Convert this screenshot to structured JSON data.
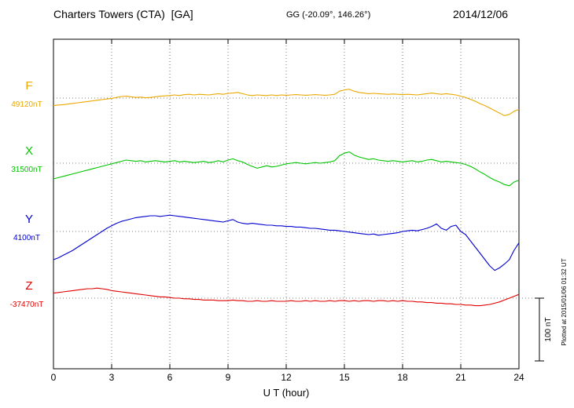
{
  "chart_data": {
    "type": "line",
    "title": "Charters Towers (CTA)  [GA]",
    "subtitle": "GG (-20.09°, 146.26°)",
    "date": "2014/12/06",
    "xlabel": "U T (hour)",
    "xlim": [
      0,
      24
    ],
    "x_ticks": [
      0,
      3,
      6,
      9,
      12,
      15,
      18,
      21,
      24
    ],
    "x_step_hours": 0.25,
    "grid": "dotted vertical lines at 3-hour ticks, dotted horizontal baseline per component",
    "legend_position": "left-margin component labels",
    "scale": {
      "label": "100 nT",
      "nT": 100
    },
    "plotted_at": "Plotted at 2015/01/06 01:32 UT",
    "series": [
      {
        "name": "F",
        "color": "#eaa800",
        "baseline_label": "49120nT",
        "baseline_nT": 49120,
        "offsets_nT": [
          -12,
          -11,
          -10.5,
          -9.5,
          -8.5,
          -7.5,
          -6.5,
          -5.5,
          -4.5,
          -3.5,
          -2.5,
          -1.5,
          -0.5,
          1,
          2.5,
          3,
          2,
          1,
          1.5,
          0.5,
          1,
          2,
          3,
          3.5,
          4,
          5,
          4,
          5.5,
          6,
          5,
          6,
          5.5,
          5,
          6,
          7,
          6,
          7.5,
          8,
          9,
          7,
          5,
          4,
          5,
          4.5,
          4,
          5,
          4,
          5,
          4.5,
          5,
          5.5,
          5,
          4.5,
          5,
          5.5,
          5,
          4.5,
          5,
          6,
          11,
          13,
          14,
          11,
          9,
          8,
          7,
          7.5,
          7,
          6.5,
          6,
          6.5,
          6,
          5.5,
          6,
          5.5,
          5,
          6,
          7,
          8,
          7,
          6,
          7,
          6,
          5,
          3,
          1,
          -2,
          -5,
          -9,
          -12,
          -16,
          -20,
          -24,
          -28,
          -26,
          -21,
          -18
        ]
      },
      {
        "name": "X",
        "color": "#00c400",
        "baseline_label": "31500nT",
        "baseline_nT": 31500,
        "offsets_nT": [
          -25,
          -23,
          -21,
          -19,
          -17,
          -15,
          -13,
          -11,
          -9,
          -7,
          -5,
          -3,
          -1,
          1,
          3,
          5,
          4,
          3,
          4,
          2,
          3,
          4,
          3,
          2,
          3,
          4,
          2,
          3,
          2,
          1,
          2,
          3,
          1,
          2,
          4,
          2,
          5,
          7,
          4,
          2,
          -2,
          -5,
          -8,
          -6,
          -4,
          -6,
          -5,
          -3,
          -1,
          0,
          1,
          0,
          -1,
          0,
          1,
          0,
          1,
          2,
          4,
          12,
          16,
          18,
          13,
          10,
          8,
          6,
          7,
          5,
          4,
          3,
          4,
          3,
          2,
          3,
          4,
          2,
          3,
          5,
          6,
          4,
          2,
          3,
          2,
          1,
          0,
          -2,
          -5,
          -9,
          -14,
          -18,
          -23,
          -27,
          -30,
          -34,
          -36,
          -30,
          -27
        ]
      },
      {
        "name": "Y",
        "color": "#0000d0",
        "baseline_label": "4100nT",
        "baseline_nT": 4100,
        "offsets_nT": [
          -45,
          -42,
          -38,
          -34,
          -30,
          -25,
          -20,
          -15,
          -10,
          -5,
          0,
          5,
          9,
          13,
          16,
          18,
          20,
          22,
          23,
          24,
          25,
          25,
          24,
          25,
          26,
          25,
          24,
          23,
          22,
          21,
          20,
          19,
          18,
          17,
          16,
          15,
          17,
          19,
          15,
          13,
          12,
          13,
          12,
          11,
          10,
          10,
          9,
          9,
          8,
          8,
          7,
          7,
          6,
          5,
          5,
          4,
          3,
          2,
          2,
          1,
          0,
          -1,
          -2,
          -3,
          -4,
          -5,
          -4,
          -6,
          -5,
          -4,
          -3,
          -2,
          0,
          1,
          2,
          1,
          3,
          5,
          8,
          12,
          5,
          2,
          8,
          10,
          0,
          -5,
          -15,
          -25,
          -35,
          -45,
          -55,
          -62,
          -58,
          -52,
          -45,
          -30,
          -18
        ]
      },
      {
        "name": "Z",
        "color": "#e00000",
        "baseline_label": "-37470nT",
        "baseline_nT": -37470,
        "offsets_nT": [
          8,
          9,
          10,
          11,
          12,
          13,
          14,
          15,
          15,
          16,
          15,
          14,
          12,
          11,
          10,
          9,
          8,
          7,
          6,
          5,
          4,
          3,
          2,
          2,
          1,
          0,
          0,
          -1,
          -1,
          -2,
          -2,
          -3,
          -3,
          -3,
          -4,
          -4,
          -4,
          -3,
          -4,
          -4,
          -5,
          -5,
          -4,
          -5,
          -5,
          -4,
          -5,
          -5,
          -5,
          -4,
          -5,
          -5,
          -4,
          -5,
          -4,
          -5,
          -5,
          -4,
          -5,
          -4,
          -4,
          -5,
          -4,
          -5,
          -4,
          -4,
          -5,
          -4,
          -4,
          -5,
          -4,
          -5,
          -4,
          -5,
          -5,
          -6,
          -6,
          -7,
          -7,
          -8,
          -8,
          -9,
          -9,
          -10,
          -10,
          -11,
          -11,
          -12,
          -12,
          -11,
          -10,
          -8,
          -6,
          -3,
          0,
          3,
          6
        ]
      }
    ]
  }
}
